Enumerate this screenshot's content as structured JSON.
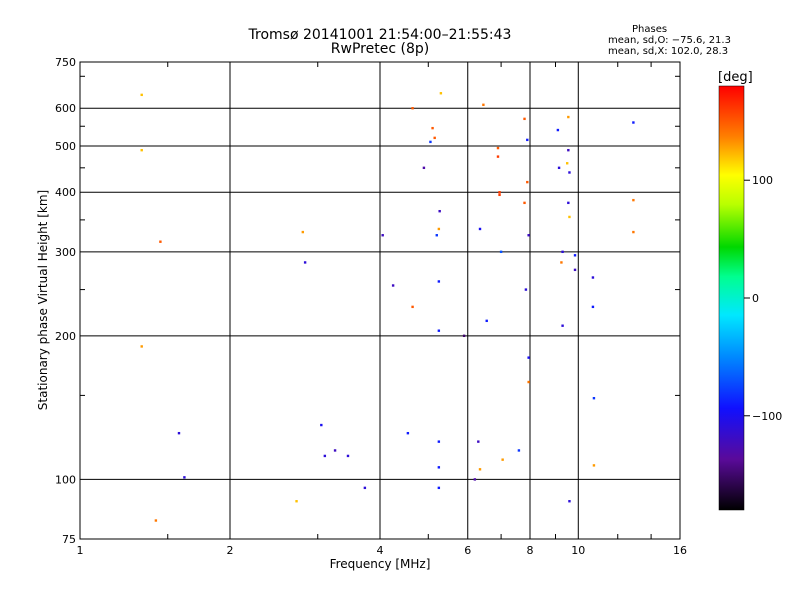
{
  "header": {
    "title_line1": "Tromsø 20141001 21:54:00–21:55:43",
    "title_line2": "RwPretec (8p)",
    "stats_heading": "Phases",
    "stats_o": "mean, sd,O: −75.6, 21.3",
    "stats_x": "mean, sd,X: 102.0, 28.3"
  },
  "colorbar": {
    "label": "[deg]",
    "ticks": [
      "100",
      "0",
      "−100"
    ],
    "range": [
      -180,
      180
    ]
  },
  "chart_data": {
    "type": "scatter",
    "xlabel": "Frequency [MHz]",
    "ylabel": "Stationary phase Virtual Height [km]",
    "x_scale": "log",
    "y_scale": "log",
    "xlim": [
      1,
      16
    ],
    "ylim": [
      75,
      750
    ],
    "x_ticks": [
      1,
      2,
      4,
      6,
      8,
      10,
      16
    ],
    "x_tick_labels": [
      "1",
      "2",
      "4",
      "6",
      "8",
      "10",
      "16"
    ],
    "y_ticks": [
      75,
      100,
      200,
      300,
      400,
      500,
      600,
      750
    ],
    "y_tick_labels": [
      "75",
      "100",
      "200",
      "300",
      "400",
      "500",
      "600",
      "750"
    ],
    "grid": true,
    "series": [
      {
        "points": [
          [
            1.33,
            640,
            120
          ],
          [
            1.33,
            490,
            120
          ],
          [
            1.33,
            190,
            130
          ],
          [
            1.45,
            315,
            150
          ],
          [
            1.42,
            82,
            140
          ],
          [
            1.58,
            125,
            -110
          ],
          [
            1.62,
            101,
            -110
          ],
          [
            3.73,
            96,
            -110
          ],
          [
            2.72,
            90,
            120
          ],
          [
            2.8,
            330,
            130
          ],
          [
            2.83,
            285,
            -110
          ],
          [
            4.05,
            325,
            -120
          ],
          [
            4.25,
            255,
            -120
          ],
          [
            4.55,
            125,
            -90
          ],
          [
            4.65,
            230,
            150
          ],
          [
            4.65,
            600,
            150
          ],
          [
            4.9,
            450,
            -130
          ],
          [
            5.15,
            520,
            150
          ],
          [
            5.1,
            545,
            150
          ],
          [
            5.25,
            260,
            -90
          ],
          [
            5.25,
            335,
            130
          ],
          [
            5.3,
            645,
            120
          ],
          [
            5.25,
            120,
            -90
          ],
          [
            5.25,
            106,
            -90
          ],
          [
            5.25,
            96,
            -90
          ],
          [
            5.25,
            205,
            -90
          ],
          [
            5.27,
            365,
            -120
          ],
          [
            5.2,
            325,
            -80
          ],
          [
            5.05,
            510,
            -80
          ],
          [
            5.9,
            200,
            -150
          ],
          [
            6.2,
            100,
            -130
          ],
          [
            6.3,
            120,
            -120
          ],
          [
            6.35,
            105,
            130
          ],
          [
            6.35,
            335,
            -100
          ],
          [
            6.45,
            610,
            140
          ],
          [
            6.55,
            215,
            -90
          ],
          [
            6.9,
            495,
            150
          ],
          [
            6.9,
            475,
            160
          ],
          [
            6.95,
            400,
            160
          ],
          [
            6.95,
            395,
            160
          ],
          [
            7.0,
            300,
            -70
          ],
          [
            7.05,
            110,
            130
          ],
          [
            7.6,
            115,
            -80
          ],
          [
            7.8,
            570,
            150
          ],
          [
            7.8,
            380,
            150
          ],
          [
            7.85,
            250,
            -110
          ],
          [
            7.95,
            325,
            -120
          ],
          [
            7.95,
            180,
            -100
          ],
          [
            7.95,
            160,
            140
          ],
          [
            7.9,
            515,
            -90
          ],
          [
            7.9,
            420,
            150
          ],
          [
            9.1,
            540,
            -90
          ],
          [
            9.15,
            450,
            -110
          ],
          [
            9.25,
            285,
            140
          ],
          [
            9.3,
            210,
            -110
          ],
          [
            9.3,
            300,
            -110
          ],
          [
            9.55,
            575,
            130
          ],
          [
            9.55,
            490,
            -120
          ],
          [
            9.6,
            440,
            -110
          ],
          [
            9.55,
            380,
            -110
          ],
          [
            9.6,
            355,
            120
          ],
          [
            9.6,
            90,
            -110
          ],
          [
            9.85,
            295,
            -90
          ],
          [
            9.85,
            275,
            -120
          ],
          [
            9.5,
            460,
            120
          ],
          [
            10.7,
            265,
            -110
          ],
          [
            10.7,
            230,
            -90
          ],
          [
            10.75,
            148,
            -80
          ],
          [
            10.75,
            107,
            130
          ],
          [
            12.9,
            385,
            140
          ],
          [
            12.9,
            330,
            140
          ],
          [
            12.9,
            560,
            -90
          ],
          [
            3.05,
            130,
            -100
          ],
          [
            3.25,
            115,
            -120
          ],
          [
            3.45,
            112,
            -110
          ],
          [
            3.1,
            112,
            -110
          ]
        ]
      }
    ]
  }
}
